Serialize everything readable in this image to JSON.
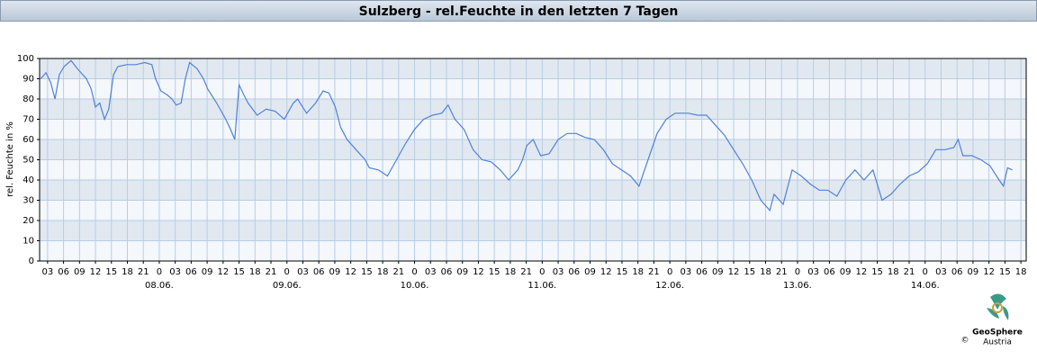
{
  "chart_data": {
    "type": "line",
    "title": "Sulzberg - rel.Feuchte in den letzten 7 Tagen",
    "ylabel": "rel. Feuchte in %",
    "logo": {
      "name": "GeoSphere",
      "sub": "Austria",
      "copyright": "©"
    },
    "color": "#4f82dc",
    "xlim": [
      1.5,
      187
    ],
    "ylim": [
      0,
      100
    ],
    "yticks": [
      0,
      10,
      20,
      30,
      40,
      50,
      60,
      70,
      80,
      90,
      100
    ],
    "grid": true,
    "xticks": [
      {
        "value": 3,
        "label": "03"
      },
      {
        "value": 6,
        "label": "06"
      },
      {
        "value": 9,
        "label": "09"
      },
      {
        "value": 12,
        "label": "12"
      },
      {
        "value": 15,
        "label": "15"
      },
      {
        "value": 18,
        "label": "18"
      },
      {
        "value": 21,
        "label": "21"
      },
      {
        "value": 24,
        "label": "0"
      },
      {
        "value": 27,
        "label": "03"
      },
      {
        "value": 30,
        "label": "06"
      },
      {
        "value": 33,
        "label": "09"
      },
      {
        "value": 36,
        "label": "12"
      },
      {
        "value": 39,
        "label": "15"
      },
      {
        "value": 42,
        "label": "18"
      },
      {
        "value": 45,
        "label": "21"
      },
      {
        "value": 48,
        "label": "0"
      },
      {
        "value": 51,
        "label": "03"
      },
      {
        "value": 54,
        "label": "06"
      },
      {
        "value": 57,
        "label": "09"
      },
      {
        "value": 60,
        "label": "12"
      },
      {
        "value": 63,
        "label": "15"
      },
      {
        "value": 66,
        "label": "18"
      },
      {
        "value": 69,
        "label": "21"
      },
      {
        "value": 72,
        "label": "0"
      },
      {
        "value": 75,
        "label": "03"
      },
      {
        "value": 78,
        "label": "06"
      },
      {
        "value": 81,
        "label": "09"
      },
      {
        "value": 84,
        "label": "12"
      },
      {
        "value": 87,
        "label": "15"
      },
      {
        "value": 90,
        "label": "18"
      },
      {
        "value": 93,
        "label": "21"
      },
      {
        "value": 96,
        "label": "0"
      },
      {
        "value": 99,
        "label": "03"
      },
      {
        "value": 102,
        "label": "06"
      },
      {
        "value": 105,
        "label": "09"
      },
      {
        "value": 108,
        "label": "12"
      },
      {
        "value": 111,
        "label": "15"
      },
      {
        "value": 114,
        "label": "18"
      },
      {
        "value": 117,
        "label": "21"
      },
      {
        "value": 120,
        "label": "0"
      },
      {
        "value": 123,
        "label": "03"
      },
      {
        "value": 126,
        "label": "06"
      },
      {
        "value": 129,
        "label": "09"
      },
      {
        "value": 132,
        "label": "12"
      },
      {
        "value": 135,
        "label": "15"
      },
      {
        "value": 138,
        "label": "18"
      },
      {
        "value": 141,
        "label": "21"
      },
      {
        "value": 144,
        "label": "0"
      },
      {
        "value": 147,
        "label": "03"
      },
      {
        "value": 150,
        "label": "06"
      },
      {
        "value": 153,
        "label": "09"
      },
      {
        "value": 156,
        "label": "12"
      },
      {
        "value": 159,
        "label": "15"
      },
      {
        "value": 162,
        "label": "18"
      },
      {
        "value": 165,
        "label": "21"
      },
      {
        "value": 168,
        "label": "0"
      },
      {
        "value": 171,
        "label": "03"
      },
      {
        "value": 174,
        "label": "06"
      },
      {
        "value": 177,
        "label": "09"
      },
      {
        "value": 180,
        "label": "12"
      },
      {
        "value": 183,
        "label": "15"
      },
      {
        "value": 186,
        "label": "18"
      }
    ],
    "date_labels": [
      {
        "value": 24,
        "label": "08.06."
      },
      {
        "value": 48,
        "label": "09.06."
      },
      {
        "value": 72,
        "label": "10.06."
      },
      {
        "value": 96,
        "label": "11.06."
      },
      {
        "value": 120,
        "label": "12.06."
      },
      {
        "value": 144,
        "label": "13.06."
      },
      {
        "value": 168,
        "label": "14.06."
      }
    ],
    "x": [
      1.7,
      2.7,
      3.6,
      4.4,
      5.2,
      6.1,
      7.4,
      8.6,
      10.3,
      11.2,
      12.0,
      12.8,
      13.7,
      14.5,
      15.4,
      16.2,
      17.9,
      19.6,
      21.3,
      22.6,
      23.3,
      24.3,
      25.5,
      26.4,
      27.2,
      28.1,
      28.9,
      29.7,
      31.1,
      32.3,
      33.1,
      34.8,
      36.5,
      37.4,
      38.2,
      39.0,
      39.9,
      40.7,
      42.4,
      44.1,
      45.8,
      47.5,
      49.2,
      50.0,
      51.7,
      53.4,
      54.8,
      55.9,
      57.1,
      58.1,
      59.3,
      61.0,
      62.7,
      63.5,
      65.2,
      66.9,
      68.6,
      70.3,
      72.0,
      73.7,
      75.4,
      77.1,
      78.3,
      79.6,
      81.3,
      83.0,
      84.7,
      86.4,
      88.1,
      89.7,
      91.4,
      92.3,
      93.1,
      94.3,
      95.7,
      97.3,
      99.0,
      100.7,
      102.4,
      104.1,
      105.8,
      107.5,
      109.2,
      110.9,
      112.6,
      114.2,
      115.9,
      117.6,
      119.3,
      121.0,
      123.5,
      125.2,
      126.9,
      128.6,
      130.3,
      132.0,
      133.7,
      135.4,
      137.1,
      138.8,
      139.6,
      141.3,
      143.0,
      144.7,
      146.4,
      148.1,
      149.7,
      151.4,
      153.1,
      154.8,
      156.5,
      158.2,
      159.9,
      161.6,
      163.3,
      165.0,
      166.7,
      168.4,
      170.0,
      171.7,
      173.4,
      174.2,
      175.1,
      176.8,
      178.5,
      180.2,
      181.9,
      182.7,
      183.5,
      184.4
    ],
    "values": [
      90,
      93,
      88,
      80,
      92,
      96,
      99,
      95,
      90,
      85,
      76,
      78,
      70,
      75,
      92,
      96,
      97,
      97,
      98,
      97,
      90,
      84,
      82,
      80,
      77,
      78,
      90,
      98,
      95,
      90,
      85,
      78,
      70,
      65,
      60,
      87,
      82,
      78,
      72,
      75,
      74,
      70,
      78,
      80,
      73,
      78,
      84,
      83,
      76,
      66,
      60,
      55,
      50,
      46,
      45,
      42,
      50,
      58,
      65,
      70,
      72,
      73,
      77,
      70,
      65,
      55,
      50,
      49,
      45,
      40,
      45,
      50,
      57,
      60,
      52,
      53,
      60,
      63,
      63,
      61,
      60,
      55,
      48,
      45,
      42,
      37,
      50,
      63,
      70,
      73,
      73,
      72,
      72,
      67,
      62,
      55,
      48,
      40,
      30,
      25,
      33,
      28,
      45,
      42,
      38,
      35,
      35,
      32,
      40,
      45,
      40,
      45,
      30,
      33,
      38,
      42,
      44,
      48,
      55,
      55,
      56,
      60,
      52,
      52,
      50,
      47,
      40,
      37,
      46,
      45
    ]
  }
}
